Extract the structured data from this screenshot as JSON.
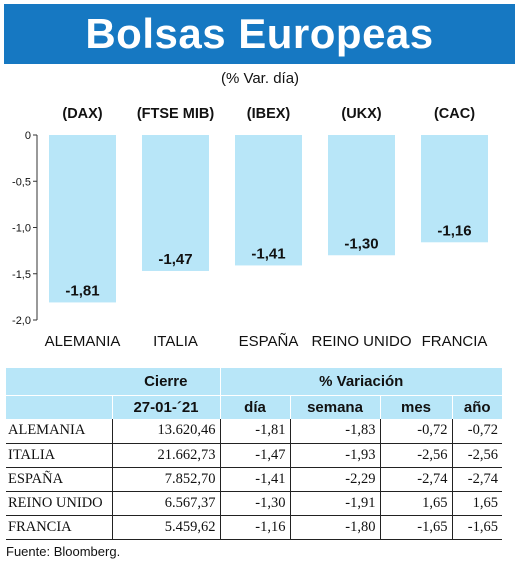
{
  "header": {
    "title": "Bolsas Europeas"
  },
  "subtitle": "(% Var. día)",
  "colors": {
    "header_bg": "#1678c2",
    "bar": "#b8e6f8",
    "table_header": "#b8e6f8"
  },
  "chart_data": {
    "type": "bar",
    "indices": [
      "(DAX)",
      "(FTSE MIB)",
      "(IBEX)",
      "(UKX)",
      "(CAC)"
    ],
    "categories": [
      "ALEMANIA",
      "ITALIA",
      "ESPAÑA",
      "REINO UNIDO",
      "FRANCIA"
    ],
    "values": [
      -1.81,
      -1.47,
      -1.41,
      -1.3,
      -1.16
    ],
    "value_labels": [
      "-1,81",
      "-1,47",
      "-1,41",
      "-1,30",
      "-1,16"
    ],
    "ylim": [
      -2.0,
      0
    ],
    "yticks": [
      0,
      -0.5,
      -1.0,
      -1.5,
      -2.0
    ],
    "ytick_labels": [
      "0",
      "-0,5",
      "-1,0",
      "-1,5",
      "-2,0"
    ],
    "grid": false
  },
  "table": {
    "group_headers": {
      "cierre": "Cierre",
      "variacion": "% Variación"
    },
    "sub_headers": {
      "date": "27-01-´21",
      "dia": "día",
      "semana": "semana",
      "mes": "mes",
      "anio": "año"
    },
    "rows": [
      {
        "name": "ALEMANIA",
        "cierre": "13.620,46",
        "dia": "-1,81",
        "semana": "-1,83",
        "mes": "-0,72",
        "anio": "-0,72"
      },
      {
        "name": "ITALIA",
        "cierre": "21.662,73",
        "dia": "-1,47",
        "semana": "-1,93",
        "mes": "-2,56",
        "anio": "-2,56"
      },
      {
        "name": "ESPAÑA",
        "cierre": "7.852,70",
        "dia": "-1,41",
        "semana": "-2,29",
        "mes": "-2,74",
        "anio": "-2,74"
      },
      {
        "name": "REINO UNIDO",
        "cierre": "6.567,37",
        "dia": "-1,30",
        "semana": "-1,91",
        "mes": "1,65",
        "anio": "1,65"
      },
      {
        "name": "FRANCIA",
        "cierre": "5.459,62",
        "dia": "-1,16",
        "semana": "-1,80",
        "mes": "-1,65",
        "anio": "-1,65"
      }
    ]
  },
  "source": "Fuente: Bloomberg."
}
